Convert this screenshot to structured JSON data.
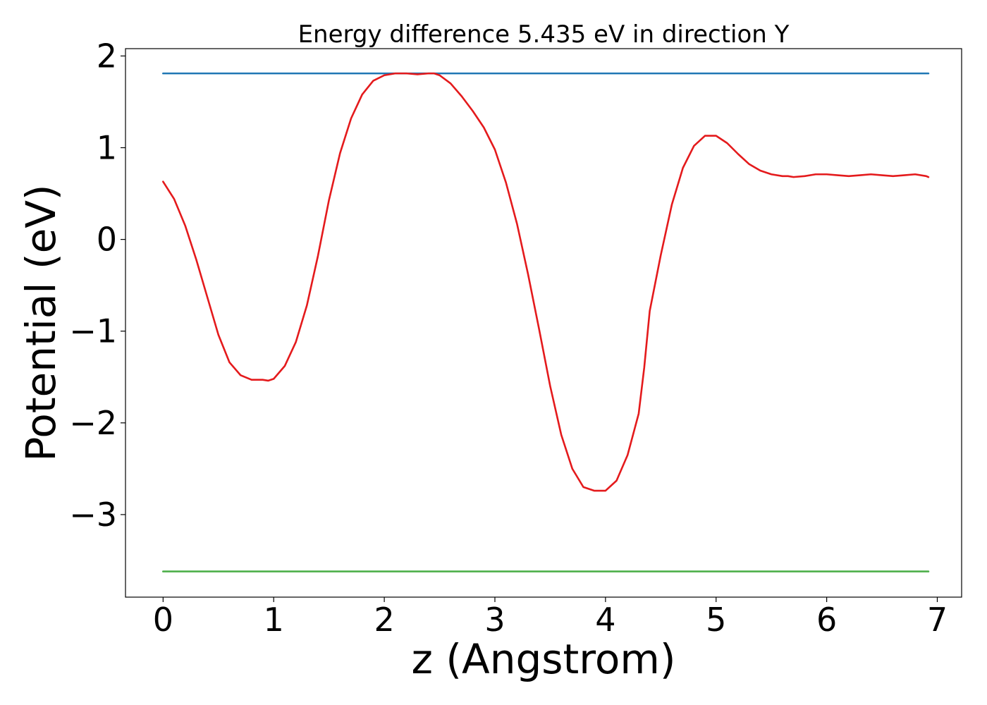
{
  "chart_data": {
    "type": "line",
    "title": "Energy difference 5.435 eV in direction Y",
    "xlabel": "z (Angstrom)",
    "ylabel": "Potential (eV)",
    "xlim": [
      -0.34,
      7.22
    ],
    "ylim": [
      -3.9,
      2.08
    ],
    "x_ticks": [
      0,
      1,
      2,
      3,
      4,
      5,
      6,
      7
    ],
    "x_tick_labels": [
      "0",
      "1",
      "2",
      "3",
      "4",
      "5",
      "6",
      "7"
    ],
    "y_ticks": [
      2,
      1,
      0,
      -1,
      -2,
      -3
    ],
    "y_tick_labels": [
      "2",
      "1",
      "0",
      "−1",
      "−2",
      "−3"
    ],
    "grid": false,
    "series": [
      {
        "role": "potential",
        "color": "#e41a1c",
        "x": [
          0,
          0.1,
          0.2,
          0.3,
          0.4,
          0.5,
          0.6,
          0.7,
          0.8,
          0.9,
          0.95,
          1.0,
          1.1,
          1.2,
          1.3,
          1.4,
          1.5,
          1.6,
          1.7,
          1.8,
          1.9,
          2.0,
          2.1,
          2.2,
          2.3,
          2.4,
          2.45,
          2.5,
          2.6,
          2.7,
          2.8,
          2.9,
          3.0,
          3.1,
          3.2,
          3.3,
          3.4,
          3.5,
          3.6,
          3.7,
          3.8,
          3.9,
          4.0,
          4.1,
          4.2,
          4.3,
          4.35,
          4.4,
          4.5,
          4.6,
          4.7,
          4.8,
          4.9,
          5.0,
          5.1,
          5.2,
          5.3,
          5.4,
          5.5,
          5.6,
          5.65,
          5.7,
          5.8,
          5.9,
          6.0,
          6.1,
          6.2,
          6.3,
          6.4,
          6.5,
          6.6,
          6.7,
          6.8,
          6.9,
          6.92
        ],
        "y": [
          0.63,
          0.44,
          0.15,
          -0.22,
          -0.63,
          -1.04,
          -1.34,
          -1.48,
          -1.53,
          -1.53,
          -1.54,
          -1.52,
          -1.38,
          -1.12,
          -0.72,
          -0.18,
          0.43,
          0.94,
          1.32,
          1.58,
          1.73,
          1.79,
          1.81,
          1.81,
          1.8,
          1.81,
          1.81,
          1.79,
          1.7,
          1.56,
          1.4,
          1.22,
          0.98,
          0.62,
          0.17,
          -0.38,
          -0.98,
          -1.6,
          -2.13,
          -2.5,
          -2.7,
          -2.74,
          -2.74,
          -2.63,
          -2.35,
          -1.9,
          -1.4,
          -0.78,
          -0.17,
          0.38,
          0.78,
          1.02,
          1.13,
          1.13,
          1.05,
          0.93,
          0.82,
          0.75,
          0.71,
          0.69,
          0.69,
          0.68,
          0.69,
          0.71,
          0.71,
          0.7,
          0.69,
          0.7,
          0.71,
          0.7,
          0.69,
          0.7,
          0.71,
          0.69,
          0.68
        ]
      },
      {
        "role": "upper-level",
        "color": "#1f77b4",
        "x": [
          0,
          6.92
        ],
        "y": [
          1.81,
          1.81
        ]
      },
      {
        "role": "lower-level",
        "color": "#4daf4a",
        "x": [
          0,
          6.92
        ],
        "y": [
          -3.62,
          -3.62
        ]
      }
    ]
  }
}
